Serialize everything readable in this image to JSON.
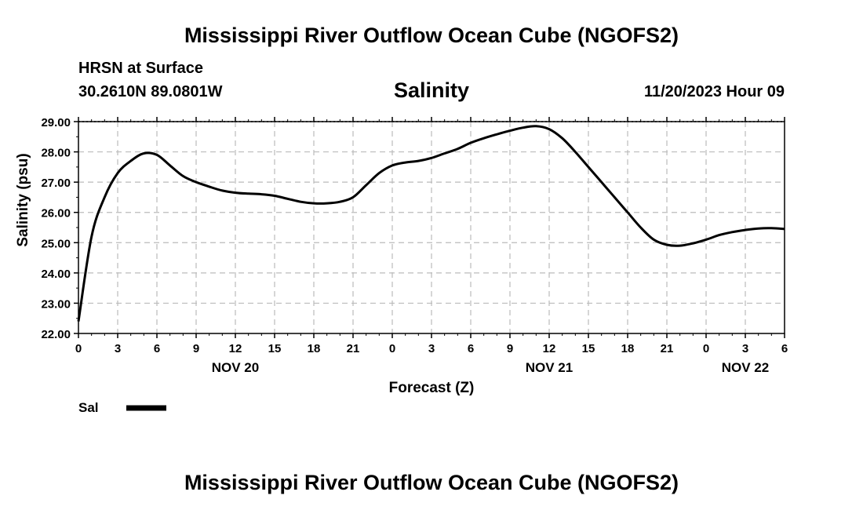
{
  "page": {
    "title_top": "Mississippi River Outflow Ocean Cube (NGOFS2)",
    "title_bottom": "Mississippi River Outflow Ocean Cube (NGOFS2)",
    "station": "HRSN at Surface",
    "coords": "30.2610N  89.0801W",
    "variable": "Salinity",
    "run_time": "11/20/2023 Hour 09"
  },
  "chart_data": {
    "type": "line",
    "title": "Salinity",
    "xlabel": "Forecast (Z)",
    "ylabel": "Salinity (psu)",
    "ylim": [
      22.0,
      29.0
    ],
    "yticks": [
      "22.00",
      "23.00",
      "24.00",
      "25.00",
      "26.00",
      "27.00",
      "28.00",
      "29.00"
    ],
    "xlim": [
      0,
      54
    ],
    "xticks": [
      "0",
      "3",
      "6",
      "9",
      "12",
      "15",
      "18",
      "21",
      "0",
      "3",
      "6",
      "9",
      "12",
      "15",
      "18",
      "21",
      "0",
      "3",
      "6"
    ],
    "date_labels": [
      {
        "label": "NOV 20",
        "x": 12
      },
      {
        "label": "NOV 21",
        "x": 36
      },
      {
        "label": "NOV 22",
        "x": 51
      }
    ],
    "grid": true,
    "legend": {
      "placement": "bottom-left",
      "entries": [
        "Sal"
      ]
    },
    "series": [
      {
        "name": "Sal",
        "color": "#000000",
        "x": [
          0,
          1,
          2,
          3,
          4,
          5,
          6,
          7,
          8,
          9,
          10,
          11,
          12,
          13,
          14,
          15,
          16,
          17,
          18,
          19,
          20,
          21,
          22,
          23,
          24,
          25,
          26,
          27,
          28,
          29,
          30,
          31,
          32,
          33,
          34,
          35,
          36,
          37,
          38,
          39,
          40,
          41,
          42,
          43,
          44,
          45,
          46,
          47,
          48,
          49,
          50,
          51,
          52,
          53,
          54
        ],
        "values": [
          22.4,
          25.2,
          26.5,
          27.3,
          27.7,
          27.95,
          27.9,
          27.55,
          27.2,
          27.0,
          26.85,
          26.72,
          26.65,
          26.62,
          26.6,
          26.55,
          26.45,
          26.35,
          26.3,
          26.3,
          26.35,
          26.5,
          26.9,
          27.3,
          27.55,
          27.65,
          27.7,
          27.8,
          27.95,
          28.1,
          28.3,
          28.45,
          28.58,
          28.7,
          28.8,
          28.85,
          28.75,
          28.45,
          28.0,
          27.5,
          27.0,
          26.5,
          26.0,
          25.5,
          25.1,
          24.93,
          24.9,
          24.98,
          25.1,
          25.25,
          25.35,
          25.42,
          25.47,
          25.48,
          25.45
        ]
      }
    ]
  }
}
